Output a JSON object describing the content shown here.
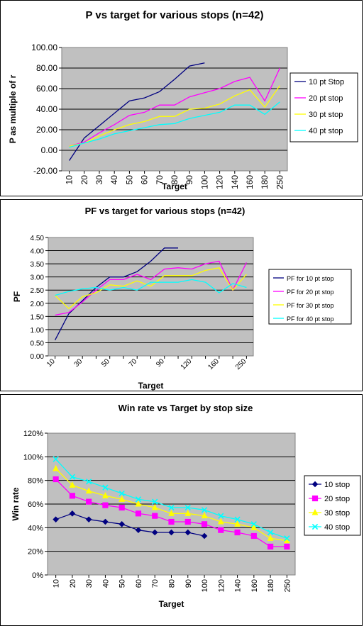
{
  "chart_data": [
    {
      "type": "line",
      "title": "P vs target for various stops (n=42)",
      "xlabel": "Target",
      "ylabel": "P as multiple of r",
      "categories": [
        "10",
        "20",
        "30",
        "40",
        "50",
        "60",
        "70",
        "80",
        "90",
        "100",
        "120",
        "140",
        "160",
        "180",
        "250"
      ],
      "ylim": [
        -20,
        100
      ],
      "yticks": [
        "-20.00",
        "0.00",
        "20.00",
        "40.00",
        "60.00",
        "80.00",
        "100.00"
      ],
      "grid": true,
      "legend": "right",
      "series": [
        {
          "name": "10 pt Stop",
          "color": "#000080",
          "marker": "none",
          "values": [
            -10,
            12,
            24,
            36,
            48,
            51,
            57,
            69,
            82,
            85,
            null,
            null,
            null,
            null,
            null
          ]
        },
        {
          "name": "20 pt stop",
          "color": "#ff00ff",
          "marker": "none",
          "values": [
            4,
            8,
            17,
            25,
            34,
            37,
            44,
            44,
            52,
            56,
            60,
            67,
            71,
            48,
            80
          ]
        },
        {
          "name": "30 pt stop",
          "color": "#ffff00",
          "marker": "none",
          "values": [
            4,
            7,
            14,
            20,
            25,
            28,
            33,
            33,
            40,
            41,
            45,
            53,
            59,
            42,
            63
          ]
        },
        {
          "name": "40 pt stop",
          "color": "#00ffff",
          "marker": "none",
          "values": [
            3,
            7,
            11,
            16,
            19,
            22,
            25,
            26,
            31,
            34,
            37,
            44,
            44,
            35,
            47
          ]
        }
      ]
    },
    {
      "type": "line",
      "title": "PF vs target for various stops (n=42)",
      "xlabel": "Target",
      "ylabel": "PF",
      "categories": [
        "10",
        "20",
        "30",
        "40",
        "50",
        "60",
        "70",
        "80",
        "90",
        "100",
        "120",
        "140",
        "160",
        "180",
        "250"
      ],
      "xtick_labels_shown": [
        "10",
        "30",
        "50",
        "70",
        "90",
        "120",
        "160",
        "250"
      ],
      "ylim": [
        0,
        4.5
      ],
      "yticks": [
        "0.00",
        "0.50",
        "1.00",
        "1.50",
        "2.00",
        "2.50",
        "3.00",
        "3.50",
        "4.00",
        "4.50"
      ],
      "grid": true,
      "legend": "right",
      "series": [
        {
          "name": "PF for 10 pt stop",
          "color": "#000080",
          "marker": "none",
          "values": [
            0.6,
            1.6,
            2.1,
            2.6,
            3.0,
            3.0,
            3.2,
            3.6,
            4.1,
            4.1,
            null,
            null,
            null,
            null,
            null
          ]
        },
        {
          "name": "PF for 20 pt stop",
          "color": "#ff00ff",
          "marker": "none",
          "values": [
            1.55,
            1.65,
            2.05,
            2.5,
            2.9,
            2.9,
            3.1,
            2.9,
            3.3,
            3.35,
            3.3,
            3.5,
            3.6,
            2.5,
            3.55
          ]
        },
        {
          "name": "PF for 30 pt stop",
          "color": "#ffff00",
          "marker": "none",
          "values": [
            2.3,
            1.8,
            2.25,
            2.4,
            2.7,
            2.65,
            2.85,
            2.65,
            3.05,
            3.05,
            3.05,
            3.25,
            3.35,
            2.5,
            3.1
          ]
        },
        {
          "name": "PF for 40 pt stop",
          "color": "#00ffff",
          "marker": "none",
          "values": [
            2.3,
            2.45,
            2.55,
            2.6,
            2.5,
            2.6,
            2.5,
            2.8,
            2.8,
            2.8,
            2.9,
            2.8,
            2.4,
            2.75,
            2.6
          ]
        }
      ]
    },
    {
      "type": "line",
      "title": "Win rate vs Target by stop size",
      "xlabel": "Target",
      "ylabel": "Win rate",
      "categories": [
        "10",
        "20",
        "30",
        "40",
        "50",
        "60",
        "70",
        "80",
        "90",
        "100",
        "120",
        "140",
        "160",
        "180",
        "250"
      ],
      "ylim": [
        0,
        120
      ],
      "yticks": [
        "0%",
        "20%",
        "40%",
        "60%",
        "80%",
        "100%",
        "120%"
      ],
      "grid": true,
      "legend": "right",
      "series": [
        {
          "name": "10 stop",
          "color": "#000080",
          "marker": "diamond",
          "values": [
            47,
            52,
            47,
            45,
            43,
            38,
            36,
            36,
            36,
            33,
            null,
            null,
            null,
            null,
            null
          ]
        },
        {
          "name": "20 stop",
          "color": "#ff00ff",
          "marker": "square",
          "values": [
            81,
            67,
            62,
            59,
            57,
            52,
            50,
            45,
            45,
            43,
            38,
            36,
            33,
            24,
            24
          ]
        },
        {
          "name": "30 stop",
          "color": "#ffff00",
          "marker": "triangle",
          "values": [
            90,
            76,
            71,
            67,
            64,
            60,
            57,
            52,
            52,
            50,
            45,
            43,
            40,
            31,
            29
          ]
        },
        {
          "name": "40 stop",
          "color": "#00ffff",
          "marker": "x",
          "values": [
            98,
            83,
            79,
            74,
            69,
            64,
            62,
            57,
            57,
            55,
            50,
            47,
            43,
            36,
            31
          ]
        }
      ]
    }
  ]
}
